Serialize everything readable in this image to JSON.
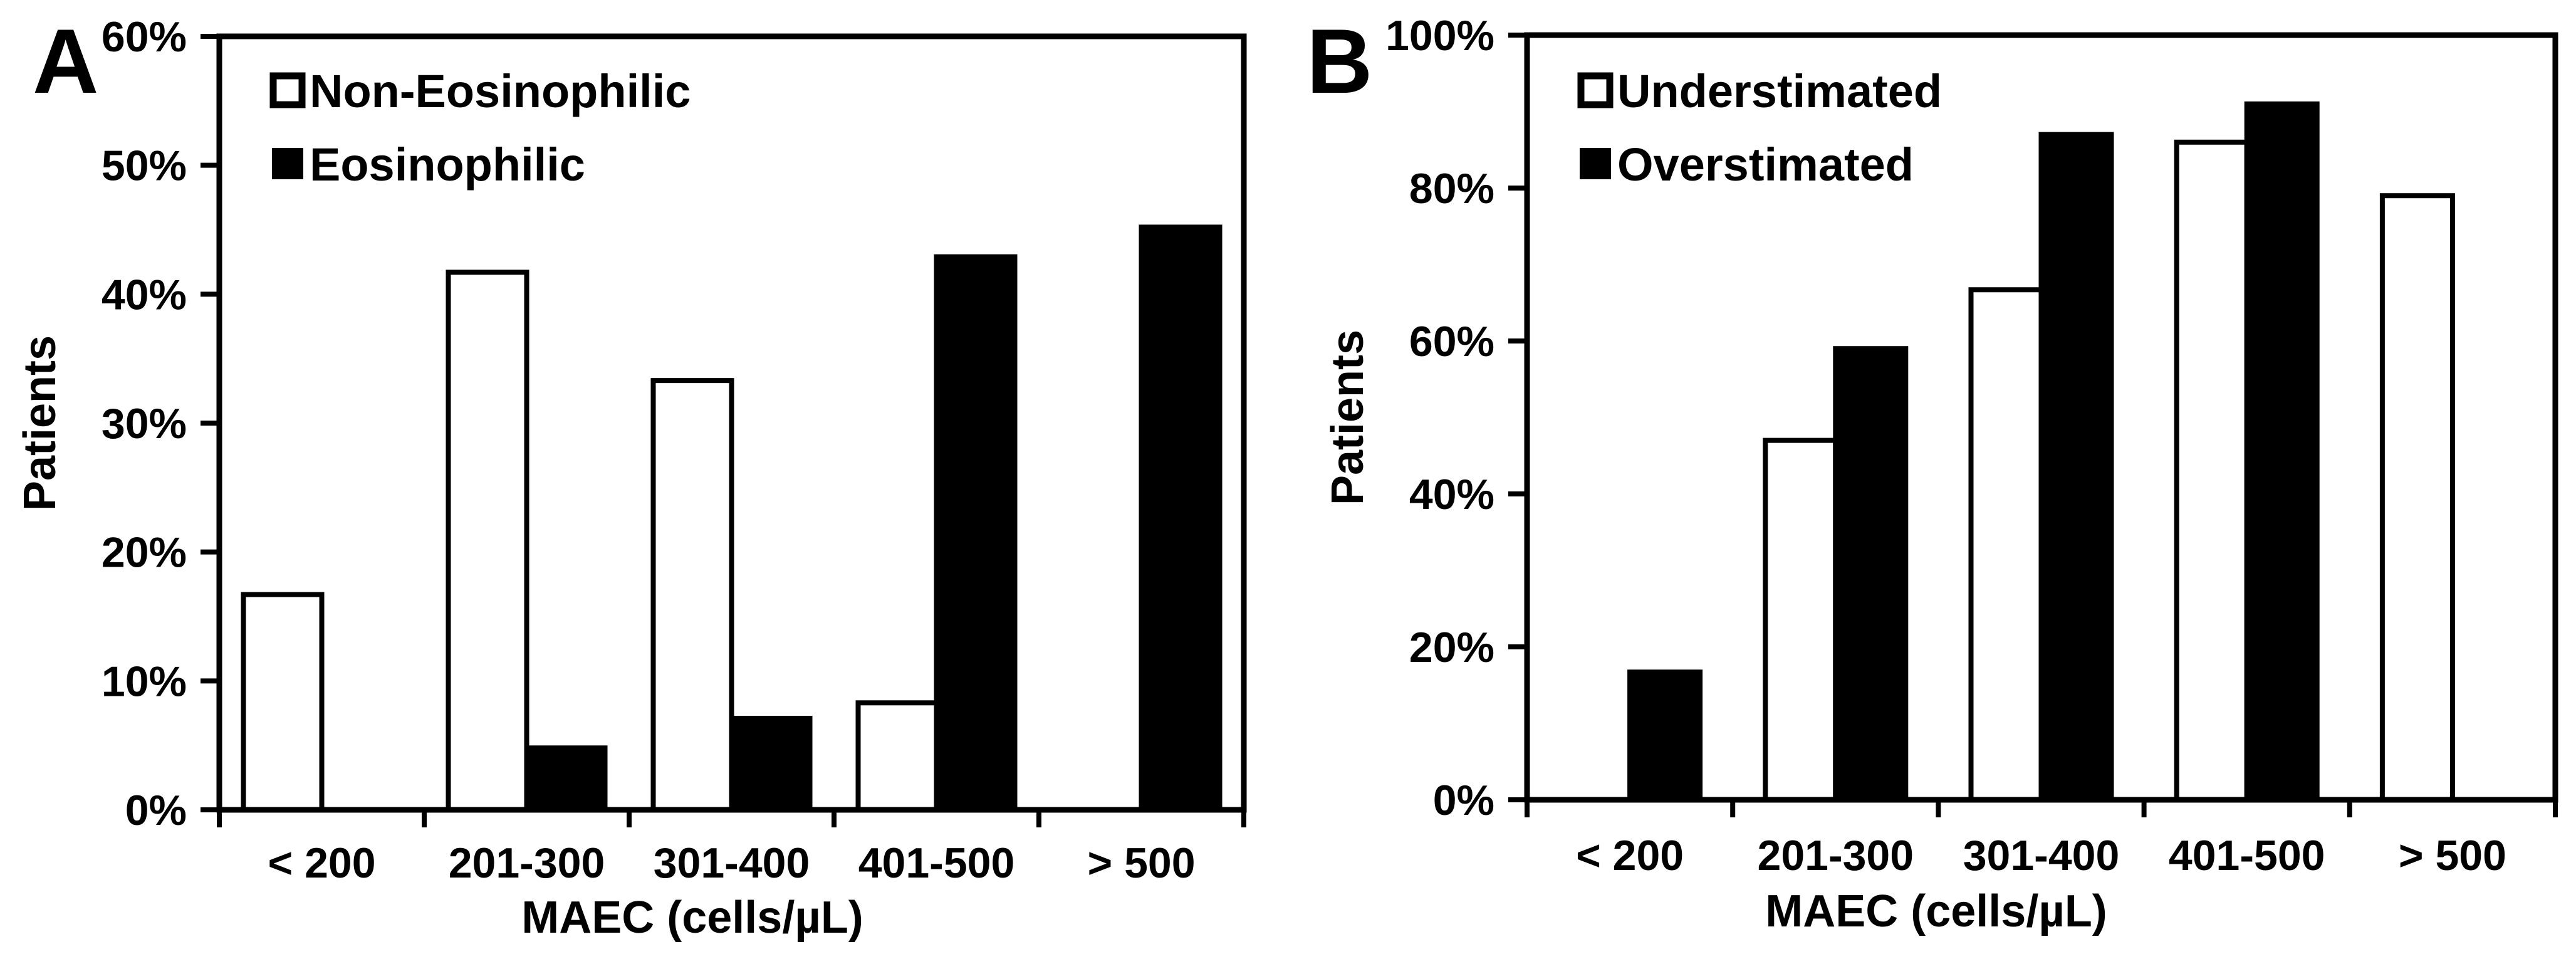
{
  "figure_background": "#ffffff",
  "colors": {
    "ink": "#000000",
    "open_bar_fill": "#ffffff",
    "solid_bar_fill": "#000000"
  },
  "chart_data": [
    {
      "type": "bar",
      "panel_label": "A",
      "title": "",
      "xlabel": "MAEC (cells/µL)",
      "ylabel": "Patients",
      "categories": [
        "< 200",
        "201-300",
        "301-400",
        "401-500",
        "> 500"
      ],
      "y_axis": {
        "min": 0,
        "max": 60,
        "step": 10,
        "unit": "%",
        "tick_labels": [
          "0%",
          "10%",
          "20%",
          "30%",
          "40%",
          "50%",
          "60%"
        ]
      },
      "grid": false,
      "legend_position": "top-left-inside",
      "series": [
        {
          "name": "Non-Eosinophilic",
          "style": "open",
          "values": [
            16.7,
            41.7,
            33.3,
            8.3,
            0
          ]
        },
        {
          "name": "Eosinophilic",
          "style": "solid",
          "values": [
            0,
            4.8,
            7.1,
            42.9,
            45.2
          ]
        }
      ]
    },
    {
      "type": "bar",
      "panel_label": "B",
      "title": "",
      "xlabel": "MAEC (cells/µL)",
      "ylabel": "Patients",
      "categories": [
        "< 200",
        "201-300",
        "301-400",
        "401-500",
        "> 500"
      ],
      "y_axis": {
        "min": 0,
        "max": 100,
        "step": 20,
        "unit": "%",
        "tick_labels": [
          "0%",
          "20%",
          "40%",
          "60%",
          "80%",
          "100%"
        ]
      },
      "grid": false,
      "legend_position": "top-left-inside",
      "series": [
        {
          "name": "Understimated",
          "style": "open",
          "values": [
            0,
            47,
            66.7,
            86,
            79
          ]
        },
        {
          "name": "Overstimated",
          "style": "solid",
          "values": [
            16.7,
            59,
            87,
            91,
            0
          ]
        }
      ]
    }
  ]
}
